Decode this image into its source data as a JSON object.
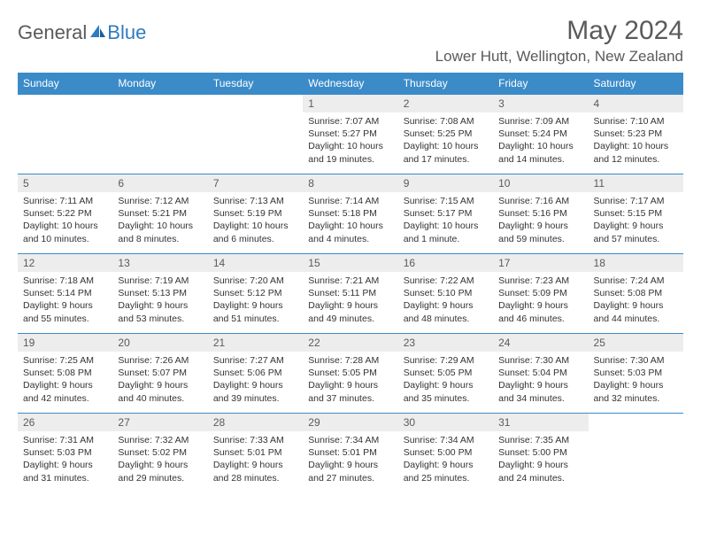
{
  "logo": {
    "text1": "General",
    "text2": "Blue"
  },
  "title": "May 2024",
  "location": "Lower Hutt, Wellington, New Zealand",
  "colors": {
    "header_bg": "#3b8bc9",
    "header_text": "#ffffff",
    "daynum_bg": "#ededed",
    "text": "#333333",
    "border": "#3b8bc9"
  },
  "day_headers": [
    "Sunday",
    "Monday",
    "Tuesday",
    "Wednesday",
    "Thursday",
    "Friday",
    "Saturday"
  ],
  "weeks": [
    [
      null,
      null,
      null,
      {
        "n": "1",
        "sr": "7:07 AM",
        "ss": "5:27 PM",
        "dl": "10 hours and 19 minutes."
      },
      {
        "n": "2",
        "sr": "7:08 AM",
        "ss": "5:25 PM",
        "dl": "10 hours and 17 minutes."
      },
      {
        "n": "3",
        "sr": "7:09 AM",
        "ss": "5:24 PM",
        "dl": "10 hours and 14 minutes."
      },
      {
        "n": "4",
        "sr": "7:10 AM",
        "ss": "5:23 PM",
        "dl": "10 hours and 12 minutes."
      }
    ],
    [
      {
        "n": "5",
        "sr": "7:11 AM",
        "ss": "5:22 PM",
        "dl": "10 hours and 10 minutes."
      },
      {
        "n": "6",
        "sr": "7:12 AM",
        "ss": "5:21 PM",
        "dl": "10 hours and 8 minutes."
      },
      {
        "n": "7",
        "sr": "7:13 AM",
        "ss": "5:19 PM",
        "dl": "10 hours and 6 minutes."
      },
      {
        "n": "8",
        "sr": "7:14 AM",
        "ss": "5:18 PM",
        "dl": "10 hours and 4 minutes."
      },
      {
        "n": "9",
        "sr": "7:15 AM",
        "ss": "5:17 PM",
        "dl": "10 hours and 1 minute."
      },
      {
        "n": "10",
        "sr": "7:16 AM",
        "ss": "5:16 PM",
        "dl": "9 hours and 59 minutes."
      },
      {
        "n": "11",
        "sr": "7:17 AM",
        "ss": "5:15 PM",
        "dl": "9 hours and 57 minutes."
      }
    ],
    [
      {
        "n": "12",
        "sr": "7:18 AM",
        "ss": "5:14 PM",
        "dl": "9 hours and 55 minutes."
      },
      {
        "n": "13",
        "sr": "7:19 AM",
        "ss": "5:13 PM",
        "dl": "9 hours and 53 minutes."
      },
      {
        "n": "14",
        "sr": "7:20 AM",
        "ss": "5:12 PM",
        "dl": "9 hours and 51 minutes."
      },
      {
        "n": "15",
        "sr": "7:21 AM",
        "ss": "5:11 PM",
        "dl": "9 hours and 49 minutes."
      },
      {
        "n": "16",
        "sr": "7:22 AM",
        "ss": "5:10 PM",
        "dl": "9 hours and 48 minutes."
      },
      {
        "n": "17",
        "sr": "7:23 AM",
        "ss": "5:09 PM",
        "dl": "9 hours and 46 minutes."
      },
      {
        "n": "18",
        "sr": "7:24 AM",
        "ss": "5:08 PM",
        "dl": "9 hours and 44 minutes."
      }
    ],
    [
      {
        "n": "19",
        "sr": "7:25 AM",
        "ss": "5:08 PM",
        "dl": "9 hours and 42 minutes."
      },
      {
        "n": "20",
        "sr": "7:26 AM",
        "ss": "5:07 PM",
        "dl": "9 hours and 40 minutes."
      },
      {
        "n": "21",
        "sr": "7:27 AM",
        "ss": "5:06 PM",
        "dl": "9 hours and 39 minutes."
      },
      {
        "n": "22",
        "sr": "7:28 AM",
        "ss": "5:05 PM",
        "dl": "9 hours and 37 minutes."
      },
      {
        "n": "23",
        "sr": "7:29 AM",
        "ss": "5:05 PM",
        "dl": "9 hours and 35 minutes."
      },
      {
        "n": "24",
        "sr": "7:30 AM",
        "ss": "5:04 PM",
        "dl": "9 hours and 34 minutes."
      },
      {
        "n": "25",
        "sr": "7:30 AM",
        "ss": "5:03 PM",
        "dl": "9 hours and 32 minutes."
      }
    ],
    [
      {
        "n": "26",
        "sr": "7:31 AM",
        "ss": "5:03 PM",
        "dl": "9 hours and 31 minutes."
      },
      {
        "n": "27",
        "sr": "7:32 AM",
        "ss": "5:02 PM",
        "dl": "9 hours and 29 minutes."
      },
      {
        "n": "28",
        "sr": "7:33 AM",
        "ss": "5:01 PM",
        "dl": "9 hours and 28 minutes."
      },
      {
        "n": "29",
        "sr": "7:34 AM",
        "ss": "5:01 PM",
        "dl": "9 hours and 27 minutes."
      },
      {
        "n": "30",
        "sr": "7:34 AM",
        "ss": "5:00 PM",
        "dl": "9 hours and 25 minutes."
      },
      {
        "n": "31",
        "sr": "7:35 AM",
        "ss": "5:00 PM",
        "dl": "9 hours and 24 minutes."
      },
      null
    ]
  ],
  "labels": {
    "sunrise": "Sunrise:",
    "sunset": "Sunset:",
    "daylight": "Daylight:"
  }
}
